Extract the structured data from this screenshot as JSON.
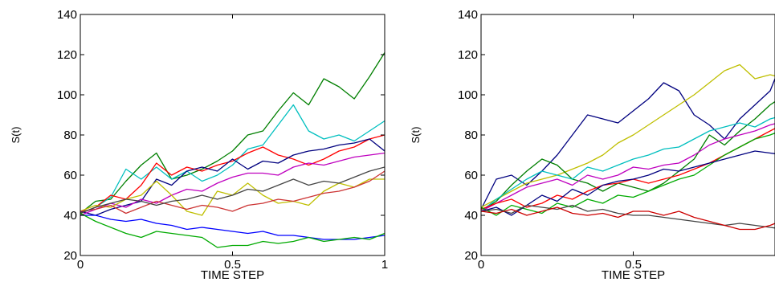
{
  "chart_data": [
    {
      "type": "line",
      "xlabel": "TIME STEP",
      "ylabel": "S(t)",
      "xlim": [
        0,
        1
      ],
      "ylim": [
        20,
        140
      ],
      "xticks": [
        0,
        0.5,
        1
      ],
      "xtick_labels": [
        "0",
        "0.5",
        "1"
      ],
      "yticks": [
        20,
        40,
        60,
        80,
        100,
        120,
        140
      ],
      "ytick_labels": [
        "20",
        "40",
        "60",
        "80",
        "100",
        "120",
        "140"
      ],
      "grid": false,
      "x": [
        0,
        0.05,
        0.1,
        0.15,
        0.2,
        0.25,
        0.3,
        0.35,
        0.4,
        0.45,
        0.5,
        0.55,
        0.6,
        0.65,
        0.7,
        0.75,
        0.8,
        0.85,
        0.9,
        0.95,
        1
      ],
      "series": [
        {
          "color": "#007f00",
          "values": [
            41,
            47,
            48,
            57,
            65,
            71,
            58,
            60,
            63,
            67,
            72,
            80,
            82,
            92,
            101,
            95,
            108,
            104,
            98,
            109,
            121
          ]
        },
        {
          "color": "#00bfbf",
          "values": [
            41,
            44,
            49,
            63,
            58,
            64,
            58,
            62,
            57,
            60,
            65,
            73,
            75,
            85,
            95,
            82,
            78,
            80,
            77,
            82,
            87
          ]
        },
        {
          "color": "#ff0000",
          "values": [
            41,
            44,
            50,
            48,
            55,
            66,
            60,
            64,
            62,
            65,
            67,
            71,
            74,
            70,
            68,
            65,
            68,
            72,
            74,
            78,
            80
          ]
        },
        {
          "color": "#00007f",
          "values": [
            42,
            40,
            43,
            45,
            47,
            58,
            55,
            62,
            64,
            62,
            68,
            63,
            67,
            66,
            70,
            72,
            73,
            75,
            76,
            78,
            72
          ]
        },
        {
          "color": "#bf00bf",
          "values": [
            40,
            43,
            46,
            44,
            48,
            46,
            50,
            53,
            52,
            56,
            59,
            61,
            61,
            60,
            64,
            66,
            65,
            67,
            69,
            70,
            71
          ]
        },
        {
          "color": "#bfbf00",
          "values": [
            42,
            45,
            44,
            48,
            50,
            57,
            50,
            42,
            40,
            52,
            50,
            56,
            50,
            46,
            47,
            45,
            52,
            56,
            54,
            58,
            58
          ]
        },
        {
          "color": "#cc3333",
          "values": [
            42,
            43,
            45,
            41,
            44,
            47,
            45,
            43,
            45,
            44,
            42,
            45,
            46,
            48,
            47,
            49,
            51,
            52,
            54,
            57,
            62
          ]
        },
        {
          "color": "#444444",
          "values": [
            41,
            44,
            46,
            48,
            47,
            45,
            47,
            48,
            50,
            48,
            50,
            53,
            52,
            55,
            58,
            55,
            57,
            56,
            59,
            62,
            64
          ]
        },
        {
          "color": "#0000ff",
          "values": [
            40,
            40,
            38,
            37,
            38,
            36,
            35,
            33,
            34,
            33,
            32,
            31,
            32,
            30,
            30,
            29,
            28,
            28,
            28,
            29,
            30
          ]
        },
        {
          "color": "#00aa00",
          "values": [
            41,
            37,
            34,
            31,
            29,
            32,
            31,
            30,
            29,
            24,
            25,
            25,
            27,
            26,
            27,
            29,
            27,
            28,
            29,
            28,
            31
          ]
        }
      ]
    },
    {
      "type": "line",
      "xlabel": "TIME STEP",
      "ylabel": "S(t)",
      "xlim": [
        0,
        1
      ],
      "ylim": [
        20,
        140
      ],
      "xticks": [
        0,
        0.5,
        1
      ],
      "xtick_labels": [
        "0",
        "0.5",
        ""
      ],
      "yticks": [
        20,
        40,
        60,
        80,
        100,
        120,
        140
      ],
      "ytick_labels": [
        "20",
        "40",
        "60",
        "80",
        "100",
        "120",
        "140"
      ],
      "grid": false,
      "x": [
        0,
        0.05,
        0.1,
        0.15,
        0.2,
        0.25,
        0.3,
        0.35,
        0.4,
        0.45,
        0.5,
        0.55,
        0.6,
        0.65,
        0.7,
        0.75,
        0.8,
        0.85,
        0.9,
        0.95,
        1
      ],
      "series": [
        {
          "color": "#00007f",
          "values": [
            43,
            58,
            60,
            55,
            62,
            70,
            80,
            90,
            88,
            86,
            92,
            98,
            106,
            102,
            90,
            85,
            78,
            88,
            95,
            102,
            121
          ]
        },
        {
          "color": "#bfbf00",
          "values": [
            44,
            48,
            52,
            56,
            58,
            60,
            63,
            66,
            70,
            76,
            80,
            85,
            90,
            95,
            100,
            106,
            112,
            115,
            108,
            110,
            108
          ]
        },
        {
          "color": "#007f00",
          "values": [
            42,
            47,
            55,
            62,
            68,
            65,
            58,
            56,
            52,
            56,
            54,
            52,
            56,
            62,
            68,
            80,
            75,
            82,
            88,
            95,
            100
          ]
        },
        {
          "color": "#00bfbf",
          "values": [
            42,
            48,
            53,
            58,
            62,
            60,
            58,
            64,
            62,
            65,
            68,
            70,
            73,
            74,
            78,
            82,
            84,
            86,
            84,
            88,
            90
          ]
        },
        {
          "color": "#bf00bf",
          "values": [
            42,
            46,
            50,
            54,
            56,
            58,
            55,
            60,
            58,
            60,
            64,
            63,
            65,
            66,
            70,
            75,
            78,
            80,
            82,
            85,
            87
          ]
        },
        {
          "color": "#ff0000",
          "values": [
            43,
            46,
            48,
            44,
            46,
            50,
            48,
            52,
            55,
            56,
            58,
            56,
            58,
            60,
            63,
            66,
            70,
            74,
            78,
            82,
            86
          ]
        },
        {
          "color": "#00aa00",
          "values": [
            44,
            40,
            45,
            43,
            41,
            46,
            44,
            48,
            46,
            50,
            49,
            52,
            55,
            58,
            60,
            65,
            70,
            74,
            78,
            80,
            83
          ]
        },
        {
          "color": "#000080",
          "values": [
            42,
            44,
            40,
            45,
            50,
            47,
            53,
            50,
            55,
            57,
            58,
            60,
            63,
            62,
            64,
            66,
            68,
            70,
            72,
            71,
            70
          ]
        },
        {
          "color": "#444444",
          "values": [
            42,
            43,
            41,
            45,
            44,
            43,
            45,
            42,
            43,
            41,
            40,
            40,
            39,
            38,
            37,
            36,
            35,
            36,
            35,
            34,
            33
          ]
        },
        {
          "color": "#cc0000",
          "values": [
            42,
            41,
            43,
            40,
            42,
            44,
            41,
            40,
            41,
            39,
            42,
            42,
            40,
            42,
            39,
            37,
            35,
            33,
            33,
            35,
            38
          ]
        }
      ]
    }
  ]
}
